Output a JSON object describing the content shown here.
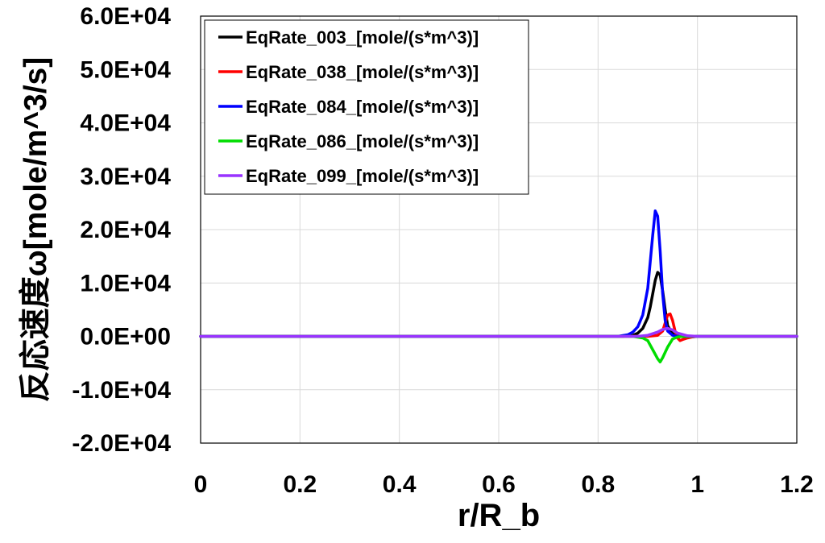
{
  "chart_data": {
    "type": "line",
    "xlabel": "r/R_b",
    "ylabel": "反応速度ω[mole/m^3/s]",
    "xlim": [
      0,
      1.2
    ],
    "ylim": [
      -20000,
      60000
    ],
    "x_ticks": [
      0,
      0.2,
      0.4,
      0.6,
      0.8,
      1.0,
      1.2
    ],
    "x_tick_labels": [
      "0",
      "0.2",
      "0.4",
      "0.6",
      "0.8",
      "1",
      "1.2"
    ],
    "y_ticks": [
      -20000,
      -10000,
      0,
      10000,
      20000,
      30000,
      40000,
      50000,
      60000
    ],
    "y_tick_labels": [
      "-2.0E+04",
      "-1.0E+04",
      "0.0E+00",
      "1.0E+04",
      "2.0E+04",
      "3.0E+04",
      "4.0E+04",
      "5.0E+04",
      "6.0E+04"
    ],
    "grid": true,
    "legend_position": "top-left",
    "series": [
      {
        "name": "EqRate_003_[mole/(s*m^3)]",
        "color": "#000000",
        "x": [
          0,
          0.85,
          0.87,
          0.88,
          0.89,
          0.9,
          0.905,
          0.91,
          0.915,
          0.92,
          0.925,
          0.93,
          0.935,
          0.94,
          0.95,
          0.96,
          0.97,
          0.98,
          1.0,
          1.2
        ],
        "y": [
          0,
          0,
          200,
          600,
          1500,
          3500,
          5500,
          8000,
          10500,
          12000,
          11500,
          8500,
          5000,
          2000,
          500,
          100,
          0,
          0,
          0,
          0
        ]
      },
      {
        "name": "EqRate_038_[mole/(s*m^3)]",
        "color": "#ff0000",
        "x": [
          0,
          0.9,
          0.92,
          0.93,
          0.935,
          0.94,
          0.945,
          0.95,
          0.955,
          0.96,
          0.965,
          0.97,
          0.98,
          0.99,
          1.0,
          1.2
        ],
        "y": [
          0,
          0,
          200,
          1000,
          2500,
          4000,
          4200,
          3000,
          1000,
          -300,
          -800,
          -600,
          -300,
          -100,
          0,
          0
        ]
      },
      {
        "name": "EqRate_084_[mole/(s*m^3)]",
        "color": "#0000ff",
        "x": [
          0,
          0.84,
          0.86,
          0.87,
          0.88,
          0.89,
          0.9,
          0.905,
          0.91,
          0.915,
          0.92,
          0.925,
          0.93,
          0.935,
          0.94,
          0.95,
          0.96,
          0.97,
          1.0,
          1.2
        ],
        "y": [
          0,
          0,
          300,
          800,
          1800,
          4000,
          9000,
          14000,
          19000,
          23500,
          22500,
          16000,
          8000,
          3000,
          1000,
          200,
          0,
          0,
          0,
          0
        ]
      },
      {
        "name": "EqRate_086_[mole/(s*m^3)]",
        "color": "#00dd00",
        "x": [
          0,
          0.87,
          0.89,
          0.9,
          0.91,
          0.92,
          0.925,
          0.93,
          0.94,
          0.95,
          0.96,
          0.97,
          1.0,
          1.2
        ],
        "y": [
          0,
          0,
          -300,
          -800,
          -2500,
          -4200,
          -4800,
          -4000,
          -2000,
          -500,
          -100,
          0,
          0,
          0
        ]
      },
      {
        "name": "EqRate_099_[mole/(s*m^3)]",
        "color": "#9933ff",
        "x": [
          0,
          0.88,
          0.9,
          0.92,
          0.93,
          0.94,
          0.95,
          0.96,
          0.98,
          1.0,
          1.2
        ],
        "y": [
          0,
          0,
          200,
          800,
          1300,
          1500,
          1200,
          600,
          100,
          0,
          0
        ]
      }
    ]
  }
}
